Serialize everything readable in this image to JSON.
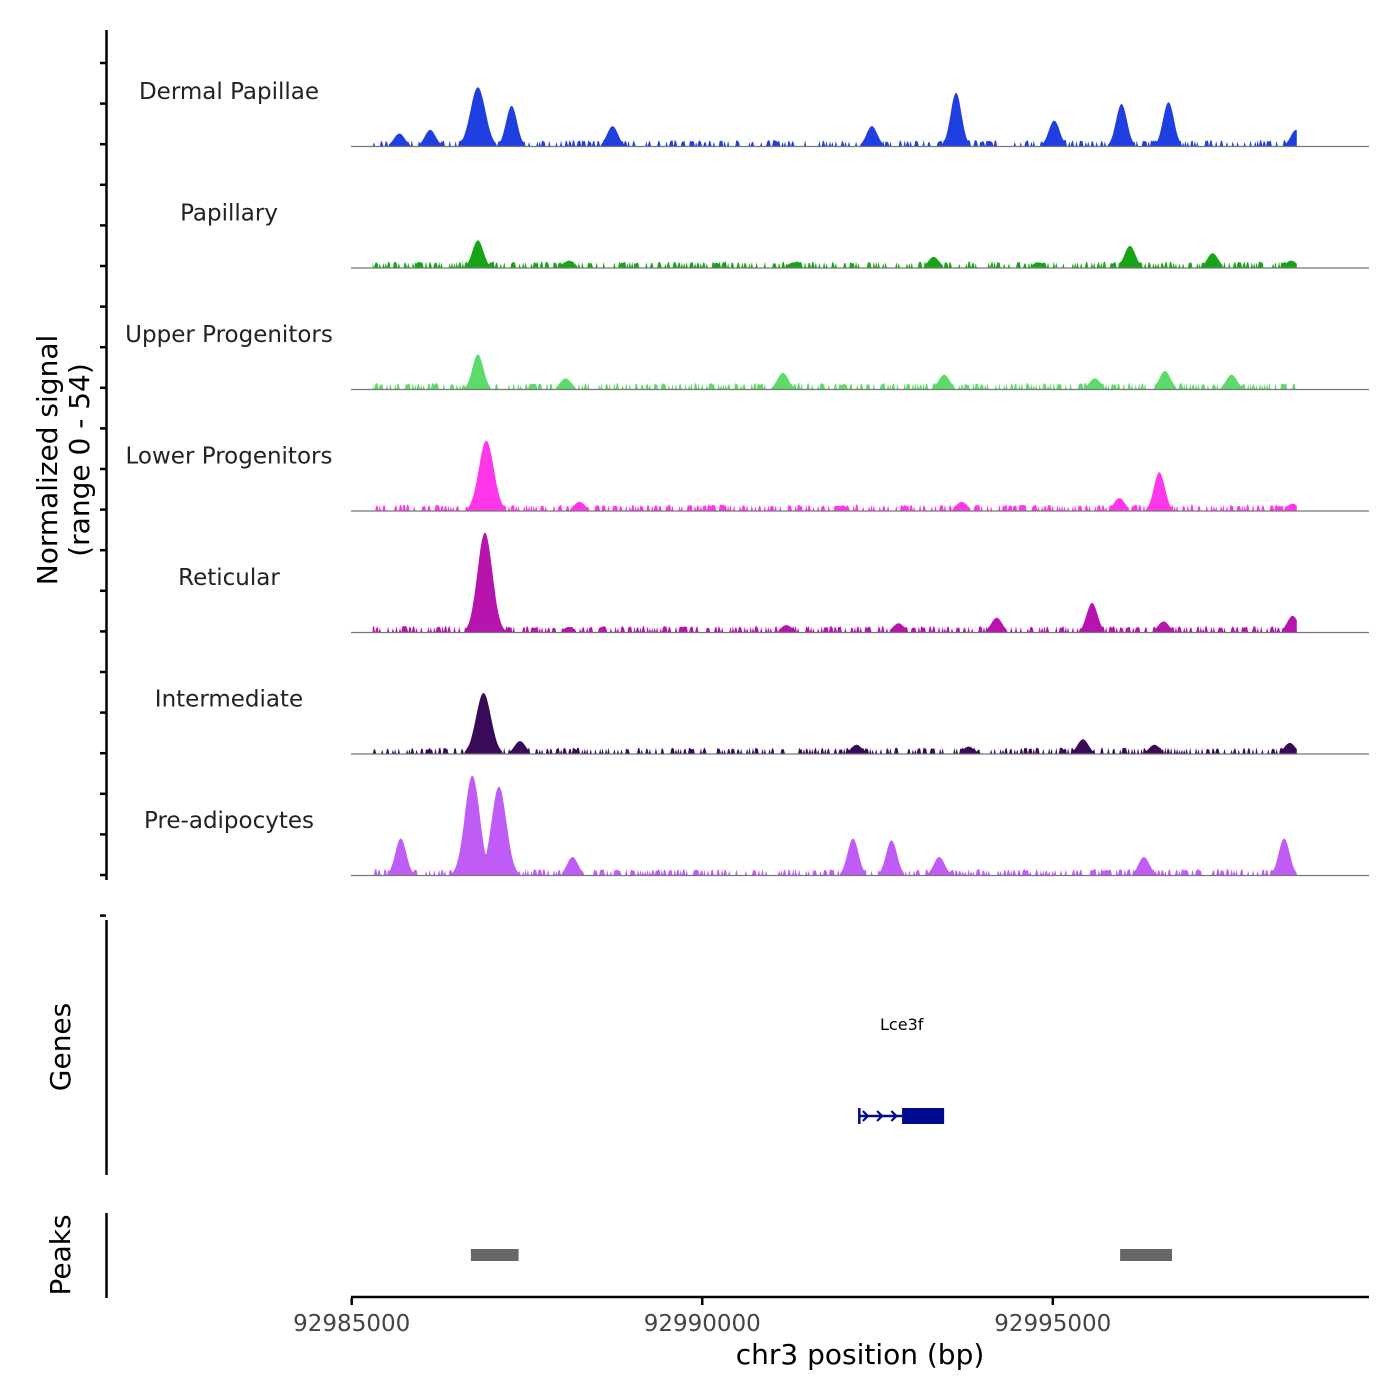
{
  "chart_data": {
    "type": "area",
    "title": "",
    "ylabel": "Normalized signal\n(range 0 - 54)",
    "ylabel_line1": "Normalized signal",
    "ylabel_line2": "(range 0 - 54)",
    "xlabel": "chr3 position (bp)",
    "chromosome": "chr3",
    "xlim": [
      92984990,
      92999510
    ],
    "ylim": [
      0,
      54
    ],
    "x_ticks": [
      {
        "value": 92985000,
        "label": "92985000"
      },
      {
        "value": 92990000,
        "label": "92990000"
      },
      {
        "value": 92995000,
        "label": "92995000"
      }
    ],
    "series": [
      {
        "name": "Dermal Papillae",
        "color": "#1f3fe0",
        "peaks": [
          {
            "x": 92985680,
            "y": 7
          },
          {
            "x": 92986120,
            "y": 9
          },
          {
            "x": 92986800,
            "y": 32
          },
          {
            "x": 92987280,
            "y": 22
          },
          {
            "x": 92988720,
            "y": 11
          },
          {
            "x": 92992420,
            "y": 11
          },
          {
            "x": 92993620,
            "y": 29
          },
          {
            "x": 92995020,
            "y": 14
          },
          {
            "x": 92995980,
            "y": 23
          },
          {
            "x": 92996650,
            "y": 24
          },
          {
            "x": 92998470,
            "y": 9
          }
        ]
      },
      {
        "name": "Papillary",
        "color": "#18a418",
        "peaks": [
          {
            "x": 92986800,
            "y": 15
          },
          {
            "x": 92988100,
            "y": 4
          },
          {
            "x": 92991300,
            "y": 3
          },
          {
            "x": 92993300,
            "y": 6
          },
          {
            "x": 92994800,
            "y": 3
          },
          {
            "x": 92996100,
            "y": 12
          },
          {
            "x": 92997280,
            "y": 8
          },
          {
            "x": 92998400,
            "y": 4
          }
        ]
      },
      {
        "name": "Upper Progenitors",
        "color": "#5ddb6a",
        "peaks": [
          {
            "x": 92986800,
            "y": 19
          },
          {
            "x": 92988050,
            "y": 6
          },
          {
            "x": 92991150,
            "y": 9
          },
          {
            "x": 92993450,
            "y": 8
          },
          {
            "x": 92995600,
            "y": 6
          },
          {
            "x": 92996600,
            "y": 10
          },
          {
            "x": 92997550,
            "y": 8
          }
        ]
      },
      {
        "name": "Lower Progenitors",
        "color": "#ff36ea",
        "peaks": [
          {
            "x": 92986920,
            "y": 38
          },
          {
            "x": 92988250,
            "y": 5
          },
          {
            "x": 92992000,
            "y": 3
          },
          {
            "x": 92993700,
            "y": 5
          },
          {
            "x": 92995950,
            "y": 7
          },
          {
            "x": 92996520,
            "y": 21
          },
          {
            "x": 92998420,
            "y": 4
          }
        ]
      },
      {
        "name": "Reticular",
        "color": "#b614ad",
        "peaks": [
          {
            "x": 92986900,
            "y": 54
          },
          {
            "x": 92988100,
            "y": 3
          },
          {
            "x": 92991200,
            "y": 4
          },
          {
            "x": 92992800,
            "y": 5
          },
          {
            "x": 92994200,
            "y": 8
          },
          {
            "x": 92995560,
            "y": 16
          },
          {
            "x": 92996580,
            "y": 6
          },
          {
            "x": 92998420,
            "y": 9
          }
        ]
      },
      {
        "name": "Intermediate",
        "color": "#3a0a5a",
        "peaks": [
          {
            "x": 92986880,
            "y": 33
          },
          {
            "x": 92987400,
            "y": 7
          },
          {
            "x": 92992200,
            "y": 5
          },
          {
            "x": 92993800,
            "y": 4
          },
          {
            "x": 92995430,
            "y": 8
          },
          {
            "x": 92996450,
            "y": 5
          },
          {
            "x": 92998380,
            "y": 6
          }
        ]
      },
      {
        "name": "Pre-adipocytes",
        "color": "#c05cf6",
        "peaks": [
          {
            "x": 92985700,
            "y": 20
          },
          {
            "x": 92986720,
            "y": 54
          },
          {
            "x": 92987100,
            "y": 48
          },
          {
            "x": 92988150,
            "y": 10
          },
          {
            "x": 92992150,
            "y": 20
          },
          {
            "x": 92992700,
            "y": 19
          },
          {
            "x": 92993380,
            "y": 10
          },
          {
            "x": 92996300,
            "y": 10
          },
          {
            "x": 92998300,
            "y": 20
          }
        ]
      }
    ],
    "genes": {
      "label": "Genes",
      "items": [
        {
          "name": "Lce3f",
          "start": 92992240,
          "end": 92993450,
          "strand": "+",
          "exon_start": 92992850,
          "exon_end": 92993450,
          "color": "#000a8c"
        }
      ]
    },
    "peaks_track": {
      "label": "Peaks",
      "color": "#666666",
      "regions": [
        {
          "start": 92986700,
          "end": 92987380
        },
        {
          "start": 92995960,
          "end": 92996700
        }
      ]
    }
  }
}
